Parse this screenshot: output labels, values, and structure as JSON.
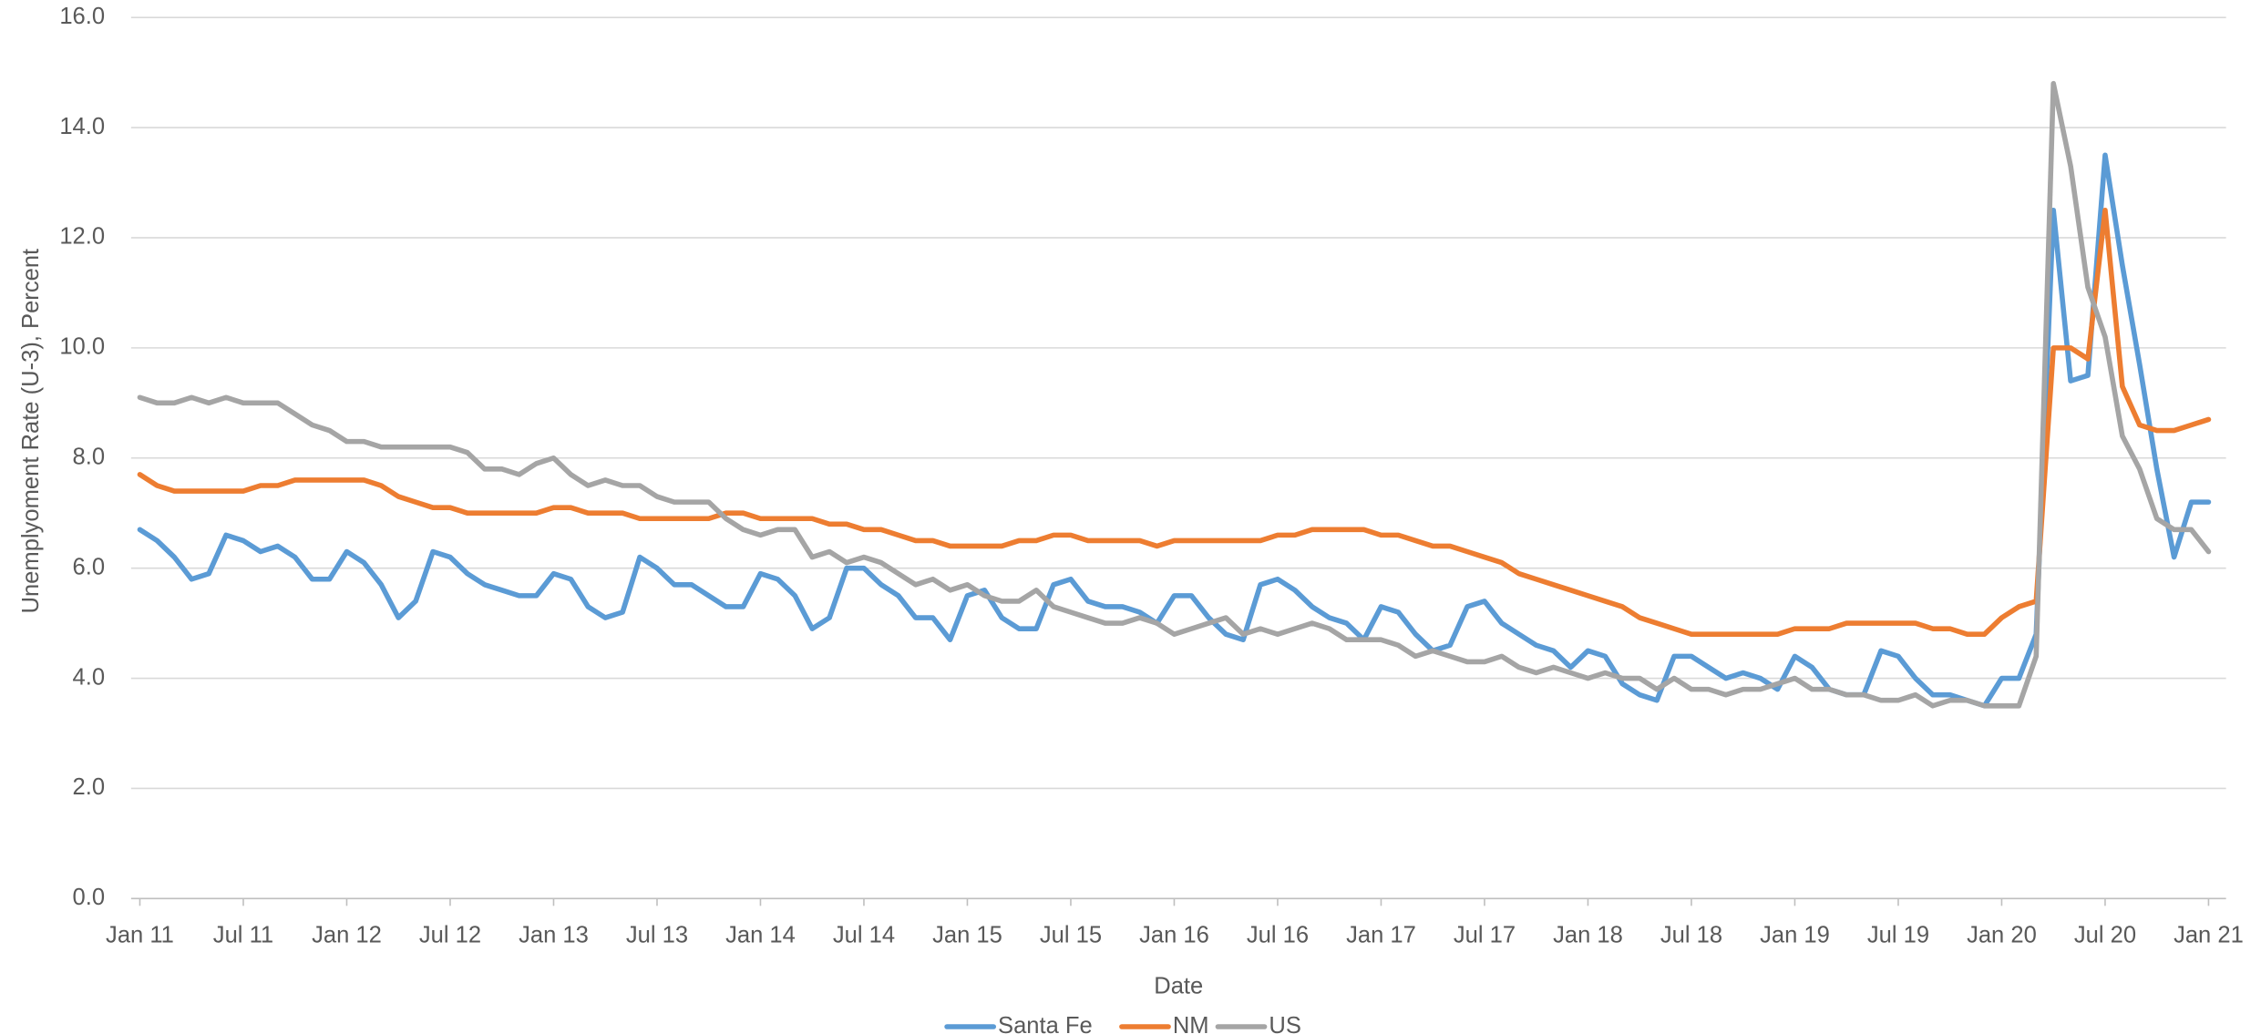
{
  "chart_data": {
    "type": "line",
    "x_label": "Date",
    "y_label": "Unemplyoment Rate (U-3), Percent",
    "x": [
      "2011-01",
      "2011-02",
      "2011-03",
      "2011-04",
      "2011-05",
      "2011-06",
      "2011-07",
      "2011-08",
      "2011-09",
      "2011-10",
      "2011-11",
      "2011-12",
      "2012-01",
      "2012-02",
      "2012-03",
      "2012-04",
      "2012-05",
      "2012-06",
      "2012-07",
      "2012-08",
      "2012-09",
      "2012-10",
      "2012-11",
      "2012-12",
      "2013-01",
      "2013-02",
      "2013-03",
      "2013-04",
      "2013-05",
      "2013-06",
      "2013-07",
      "2013-08",
      "2013-09",
      "2013-10",
      "2013-11",
      "2013-12",
      "2014-01",
      "2014-02",
      "2014-03",
      "2014-04",
      "2014-05",
      "2014-06",
      "2014-07",
      "2014-08",
      "2014-09",
      "2014-10",
      "2014-11",
      "2014-12",
      "2015-01",
      "2015-02",
      "2015-03",
      "2015-04",
      "2015-05",
      "2015-06",
      "2015-07",
      "2015-08",
      "2015-09",
      "2015-10",
      "2015-11",
      "2015-12",
      "2016-01",
      "2016-02",
      "2016-03",
      "2016-04",
      "2016-05",
      "2016-06",
      "2016-07",
      "2016-08",
      "2016-09",
      "2016-10",
      "2016-11",
      "2016-12",
      "2017-01",
      "2017-02",
      "2017-03",
      "2017-04",
      "2017-05",
      "2017-06",
      "2017-07",
      "2017-08",
      "2017-09",
      "2017-10",
      "2017-11",
      "2017-12",
      "2018-01",
      "2018-02",
      "2018-03",
      "2018-04",
      "2018-05",
      "2018-06",
      "2018-07",
      "2018-08",
      "2018-09",
      "2018-10",
      "2018-11",
      "2018-12",
      "2019-01",
      "2019-02",
      "2019-03",
      "2019-04",
      "2019-05",
      "2019-06",
      "2019-07",
      "2019-08",
      "2019-09",
      "2019-10",
      "2019-11",
      "2019-12",
      "2020-01",
      "2020-02",
      "2020-03",
      "2020-04",
      "2020-05",
      "2020-06",
      "2020-07",
      "2020-08",
      "2020-09",
      "2020-10",
      "2020-11",
      "2020-12",
      "2021-01"
    ],
    "series": [
      {
        "name": "Santa Fe",
        "color": "#5b9bd5",
        "values": [
          6.7,
          6.5,
          6.2,
          5.8,
          5.9,
          6.6,
          6.5,
          6.3,
          6.4,
          6.2,
          5.8,
          5.8,
          6.3,
          6.1,
          5.7,
          5.1,
          5.4,
          6.3,
          6.2,
          5.9,
          5.7,
          5.6,
          5.5,
          5.5,
          5.9,
          5.8,
          5.3,
          5.1,
          5.2,
          6.2,
          6.0,
          5.7,
          5.7,
          5.5,
          5.3,
          5.3,
          5.9,
          5.8,
          5.5,
          4.9,
          5.1,
          6.0,
          6.0,
          5.7,
          5.5,
          5.1,
          5.1,
          4.7,
          5.5,
          5.6,
          5.1,
          4.9,
          4.9,
          5.7,
          5.8,
          5.4,
          5.3,
          5.3,
          5.2,
          5.0,
          5.5,
          5.5,
          5.1,
          4.8,
          4.7,
          5.7,
          5.8,
          5.6,
          5.3,
          5.1,
          5.0,
          4.7,
          5.3,
          5.2,
          4.8,
          4.5,
          4.6,
          5.3,
          5.4,
          5.0,
          4.8,
          4.6,
          4.5,
          4.2,
          4.5,
          4.4,
          3.9,
          3.7,
          3.6,
          4.4,
          4.4,
          4.2,
          4.0,
          4.1,
          4.0,
          3.8,
          4.4,
          4.2,
          3.8,
          3.7,
          3.7,
          4.5,
          4.4,
          4.0,
          3.7,
          3.7,
          3.6,
          3.5,
          4.0,
          4.0,
          4.8,
          12.5,
          9.4,
          9.5,
          13.5,
          11.5,
          9.7,
          7.8,
          6.2,
          7.2,
          7.2
        ]
      },
      {
        "name": "NM",
        "color": "#ed7d31",
        "values": [
          7.7,
          7.5,
          7.4,
          7.4,
          7.4,
          7.4,
          7.4,
          7.5,
          7.5,
          7.6,
          7.6,
          7.6,
          7.6,
          7.6,
          7.5,
          7.3,
          7.2,
          7.1,
          7.1,
          7.0,
          7.0,
          7.0,
          7.0,
          7.0,
          7.1,
          7.1,
          7.0,
          7.0,
          7.0,
          6.9,
          6.9,
          6.9,
          6.9,
          6.9,
          7.0,
          7.0,
          6.9,
          6.9,
          6.9,
          6.9,
          6.8,
          6.8,
          6.7,
          6.7,
          6.6,
          6.5,
          6.5,
          6.4,
          6.4,
          6.4,
          6.4,
          6.5,
          6.5,
          6.6,
          6.6,
          6.5,
          6.5,
          6.5,
          6.5,
          6.4,
          6.5,
          6.5,
          6.5,
          6.5,
          6.5,
          6.5,
          6.6,
          6.6,
          6.7,
          6.7,
          6.7,
          6.7,
          6.6,
          6.6,
          6.5,
          6.4,
          6.4,
          6.3,
          6.2,
          6.1,
          5.9,
          5.8,
          5.7,
          5.6,
          5.5,
          5.4,
          5.3,
          5.1,
          5.0,
          4.9,
          4.8,
          4.8,
          4.8,
          4.8,
          4.8,
          4.8,
          4.9,
          4.9,
          4.9,
          5.0,
          5.0,
          5.0,
          5.0,
          5.0,
          4.9,
          4.9,
          4.8,
          4.8,
          5.1,
          5.3,
          5.4,
          10.0,
          10.0,
          9.8,
          12.5,
          9.3,
          8.6,
          8.5,
          8.5,
          8.6,
          8.7
        ]
      },
      {
        "name": "US",
        "color": "#a5a5a5",
        "values": [
          9.1,
          9.0,
          9.0,
          9.1,
          9.0,
          9.1,
          9.0,
          9.0,
          9.0,
          8.8,
          8.6,
          8.5,
          8.3,
          8.3,
          8.2,
          8.2,
          8.2,
          8.2,
          8.2,
          8.1,
          7.8,
          7.8,
          7.7,
          7.9,
          8.0,
          7.7,
          7.5,
          7.6,
          7.5,
          7.5,
          7.3,
          7.2,
          7.2,
          7.2,
          6.9,
          6.7,
          6.6,
          6.7,
          6.7,
          6.2,
          6.3,
          6.1,
          6.2,
          6.1,
          5.9,
          5.7,
          5.8,
          5.6,
          5.7,
          5.5,
          5.4,
          5.4,
          5.6,
          5.3,
          5.2,
          5.1,
          5.0,
          5.0,
          5.1,
          5.0,
          4.8,
          4.9,
          5.0,
          5.1,
          4.8,
          4.9,
          4.8,
          4.9,
          5.0,
          4.9,
          4.7,
          4.7,
          4.7,
          4.6,
          4.4,
          4.5,
          4.4,
          4.3,
          4.3,
          4.4,
          4.2,
          4.1,
          4.2,
          4.1,
          4.0,
          4.1,
          4.0,
          4.0,
          3.8,
          4.0,
          3.8,
          3.8,
          3.7,
          3.8,
          3.8,
          3.9,
          4.0,
          3.8,
          3.8,
          3.7,
          3.7,
          3.6,
          3.6,
          3.7,
          3.5,
          3.6,
          3.6,
          3.5,
          3.5,
          3.5,
          4.4,
          14.8,
          13.3,
          11.1,
          10.2,
          8.4,
          7.8,
          6.9,
          6.7,
          6.7,
          6.3
        ]
      }
    ],
    "ylim": [
      0,
      16
    ],
    "yticks": [
      {
        "value": 0,
        "label": "0.0"
      },
      {
        "value": 2,
        "label": "2.0"
      },
      {
        "value": 4,
        "label": "4.0"
      },
      {
        "value": 6,
        "label": "6.0"
      },
      {
        "value": 8,
        "label": "8.0"
      },
      {
        "value": 10,
        "label": "10.0"
      },
      {
        "value": 12,
        "label": "12.0"
      },
      {
        "value": 14,
        "label": "14.0"
      },
      {
        "value": 16,
        "label": "16.0"
      }
    ],
    "xticks": [
      {
        "value": "2011-01",
        "label": "Jan 11"
      },
      {
        "value": "2011-07",
        "label": "Jul 11"
      },
      {
        "value": "2012-01",
        "label": "Jan 12"
      },
      {
        "value": "2012-07",
        "label": "Jul 12"
      },
      {
        "value": "2013-01",
        "label": "Jan 13"
      },
      {
        "value": "2013-07",
        "label": "Jul 13"
      },
      {
        "value": "2014-01",
        "label": "Jan 14"
      },
      {
        "value": "2014-07",
        "label": "Jul 14"
      },
      {
        "value": "2015-01",
        "label": "Jan 15"
      },
      {
        "value": "2015-07",
        "label": "Jul 15"
      },
      {
        "value": "2016-01",
        "label": "Jan 16"
      },
      {
        "value": "2016-07",
        "label": "Jul 16"
      },
      {
        "value": "2017-01",
        "label": "Jan 17"
      },
      {
        "value": "2017-07",
        "label": "Jul 17"
      },
      {
        "value": "2018-01",
        "label": "Jan 18"
      },
      {
        "value": "2018-07",
        "label": "Jul 18"
      },
      {
        "value": "2019-01",
        "label": "Jan 19"
      },
      {
        "value": "2019-07",
        "label": "Jul 19"
      },
      {
        "value": "2020-01",
        "label": "Jan 20"
      },
      {
        "value": "2020-07",
        "label": "Jul 20"
      },
      {
        "value": "2021-01",
        "label": "Jan 21"
      }
    ],
    "grid": true,
    "legend": "bottom"
  }
}
